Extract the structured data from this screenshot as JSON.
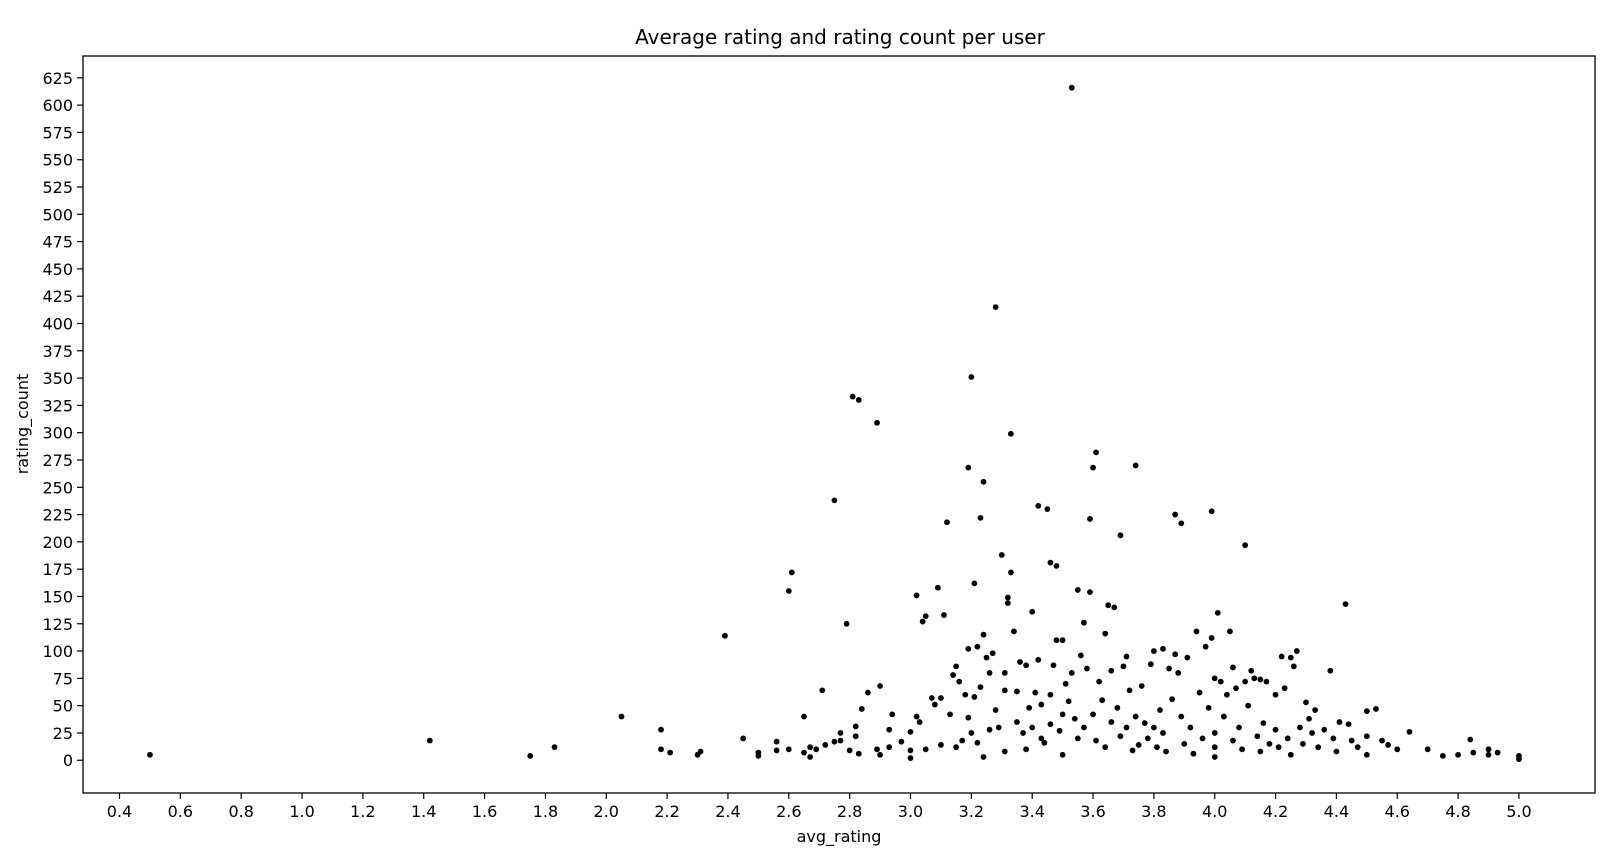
{
  "chart_data": {
    "type": "scatter",
    "title": "Average rating and rating count per user",
    "xlabel": "avg_rating",
    "ylabel": "rating_count",
    "xlim": [
      0.28,
      5.25
    ],
    "ylim": [
      -30,
      645
    ],
    "xticks": [
      "0.4",
      "0.6",
      "0.8",
      "1.0",
      "1.2",
      "1.4",
      "1.6",
      "1.8",
      "2.0",
      "2.2",
      "2.4",
      "2.6",
      "2.8",
      "3.0",
      "3.2",
      "3.4",
      "3.6",
      "3.8",
      "4.0",
      "4.2",
      "4.4",
      "4.6",
      "4.8",
      "5.0"
    ],
    "yticks": [
      "0",
      "25",
      "50",
      "75",
      "100",
      "125",
      "150",
      "175",
      "200",
      "225",
      "250",
      "275",
      "300",
      "325",
      "350",
      "375",
      "400",
      "425",
      "450",
      "475",
      "500",
      "525",
      "550",
      "575",
      "600",
      "625"
    ],
    "grid": false,
    "marker_color": "#000000",
    "points": [
      [
        0.5,
        5
      ],
      [
        1.42,
        18
      ],
      [
        1.75,
        4
      ],
      [
        1.83,
        12
      ],
      [
        2.05,
        40
      ],
      [
        2.18,
        28
      ],
      [
        2.18,
        10
      ],
      [
        2.21,
        7
      ],
      [
        2.3,
        5
      ],
      [
        2.31,
        8
      ],
      [
        2.39,
        114
      ],
      [
        2.45,
        20
      ],
      [
        2.5,
        4
      ],
      [
        2.5,
        7
      ],
      [
        2.56,
        17
      ],
      [
        2.56,
        9
      ],
      [
        2.6,
        155
      ],
      [
        2.61,
        172
      ],
      [
        2.6,
        10
      ],
      [
        2.65,
        40
      ],
      [
        2.65,
        7
      ],
      [
        2.67,
        12
      ],
      [
        2.67,
        3
      ],
      [
        2.69,
        10
      ],
      [
        2.71,
        64
      ],
      [
        2.72,
        14
      ],
      [
        2.75,
        238
      ],
      [
        2.75,
        17
      ],
      [
        2.77,
        18
      ],
      [
        2.77,
        25
      ],
      [
        2.79,
        125
      ],
      [
        2.8,
        9
      ],
      [
        2.81,
        333
      ],
      [
        2.83,
        330
      ],
      [
        2.82,
        31
      ],
      [
        2.82,
        22
      ],
      [
        2.83,
        6
      ],
      [
        2.84,
        47
      ],
      [
        2.86,
        62
      ],
      [
        2.89,
        309
      ],
      [
        2.9,
        68
      ],
      [
        2.89,
        10
      ],
      [
        2.9,
        5
      ],
      [
        2.93,
        28
      ],
      [
        2.94,
        42
      ],
      [
        2.93,
        12
      ],
      [
        2.97,
        17
      ],
      [
        3.0,
        26
      ],
      [
        3.0,
        9
      ],
      [
        3.0,
        2
      ],
      [
        3.02,
        151
      ],
      [
        3.02,
        40
      ],
      [
        3.03,
        35
      ],
      [
        3.04,
        127
      ],
      [
        3.05,
        132
      ],
      [
        3.05,
        10
      ],
      [
        3.07,
        57
      ],
      [
        3.08,
        51
      ],
      [
        3.09,
        158
      ],
      [
        3.1,
        57
      ],
      [
        3.1,
        14
      ],
      [
        3.11,
        133
      ],
      [
        3.12,
        218
      ],
      [
        3.13,
        42
      ],
      [
        3.14,
        78
      ],
      [
        3.15,
        86
      ],
      [
        3.15,
        12
      ],
      [
        3.16,
        72
      ],
      [
        3.17,
        18
      ],
      [
        3.18,
        60
      ],
      [
        3.19,
        268
      ],
      [
        3.19,
        102
      ],
      [
        3.19,
        39
      ],
      [
        3.2,
        351
      ],
      [
        3.2,
        25
      ],
      [
        3.21,
        162
      ],
      [
        3.21,
        58
      ],
      [
        3.22,
        104
      ],
      [
        3.22,
        16
      ],
      [
        3.23,
        222
      ],
      [
        3.23,
        67
      ],
      [
        3.24,
        255
      ],
      [
        3.24,
        115
      ],
      [
        3.24,
        3
      ],
      [
        3.25,
        94
      ],
      [
        3.26,
        80
      ],
      [
        3.26,
        28
      ],
      [
        3.27,
        98
      ],
      [
        3.28,
        415
      ],
      [
        3.28,
        46
      ],
      [
        3.29,
        30
      ],
      [
        3.3,
        188
      ],
      [
        3.31,
        80
      ],
      [
        3.31,
        64
      ],
      [
        3.31,
        8
      ],
      [
        3.32,
        149
      ],
      [
        3.32,
        144
      ],
      [
        3.33,
        299
      ],
      [
        3.33,
        172
      ],
      [
        3.34,
        118
      ],
      [
        3.35,
        63
      ],
      [
        3.35,
        35
      ],
      [
        3.36,
        90
      ],
      [
        3.37,
        25
      ],
      [
        3.38,
        87
      ],
      [
        3.38,
        10
      ],
      [
        3.39,
        48
      ],
      [
        3.4,
        136
      ],
      [
        3.4,
        30
      ],
      [
        3.41,
        62
      ],
      [
        3.42,
        233
      ],
      [
        3.42,
        92
      ],
      [
        3.43,
        51
      ],
      [
        3.43,
        20
      ],
      [
        3.44,
        16
      ],
      [
        3.45,
        230
      ],
      [
        3.46,
        181
      ],
      [
        3.46,
        60
      ],
      [
        3.46,
        33
      ],
      [
        3.47,
        87
      ],
      [
        3.48,
        178
      ],
      [
        3.48,
        110
      ],
      [
        3.49,
        27
      ],
      [
        3.5,
        110
      ],
      [
        3.5,
        42
      ],
      [
        3.5,
        5
      ],
      [
        3.51,
        70
      ],
      [
        3.52,
        54
      ],
      [
        3.53,
        616
      ],
      [
        3.53,
        80
      ],
      [
        3.54,
        38
      ],
      [
        3.55,
        156
      ],
      [
        3.55,
        20
      ],
      [
        3.56,
        96
      ],
      [
        3.57,
        126
      ],
      [
        3.57,
        30
      ],
      [
        3.58,
        84
      ],
      [
        3.59,
        221
      ],
      [
        3.59,
        154
      ],
      [
        3.6,
        268
      ],
      [
        3.61,
        282
      ],
      [
        3.6,
        42
      ],
      [
        3.61,
        18
      ],
      [
        3.62,
        72
      ],
      [
        3.63,
        55
      ],
      [
        3.64,
        116
      ],
      [
        3.64,
        12
      ],
      [
        3.65,
        142
      ],
      [
        3.66,
        82
      ],
      [
        3.66,
        35
      ],
      [
        3.67,
        140
      ],
      [
        3.68,
        48
      ],
      [
        3.69,
        206
      ],
      [
        3.69,
        22
      ],
      [
        3.7,
        86
      ],
      [
        3.71,
        95
      ],
      [
        3.71,
        30
      ],
      [
        3.72,
        64
      ],
      [
        3.73,
        9
      ],
      [
        3.74,
        270
      ],
      [
        3.74,
        40
      ],
      [
        3.75,
        14
      ],
      [
        3.76,
        68
      ],
      [
        3.77,
        34
      ],
      [
        3.78,
        20
      ],
      [
        3.79,
        88
      ],
      [
        3.8,
        100
      ],
      [
        3.8,
        30
      ],
      [
        3.81,
        12
      ],
      [
        3.82,
        46
      ],
      [
        3.83,
        102
      ],
      [
        3.83,
        25
      ],
      [
        3.84,
        8
      ],
      [
        3.85,
        84
      ],
      [
        3.86,
        56
      ],
      [
        3.87,
        97
      ],
      [
        3.87,
        225
      ],
      [
        3.88,
        80
      ],
      [
        3.89,
        217
      ],
      [
        3.89,
        40
      ],
      [
        3.9,
        15
      ],
      [
        3.91,
        94
      ],
      [
        3.92,
        30
      ],
      [
        3.93,
        6
      ],
      [
        3.94,
        118
      ],
      [
        3.95,
        62
      ],
      [
        3.96,
        20
      ],
      [
        3.97,
        104
      ],
      [
        3.98,
        48
      ],
      [
        3.99,
        228
      ],
      [
        3.99,
        112
      ],
      [
        4.0,
        75
      ],
      [
        4.0,
        25
      ],
      [
        4.0,
        12
      ],
      [
        4.0,
        3
      ],
      [
        4.01,
        135
      ],
      [
        4.02,
        72
      ],
      [
        4.03,
        40
      ],
      [
        4.04,
        60
      ],
      [
        4.05,
        118
      ],
      [
        4.06,
        85
      ],
      [
        4.06,
        18
      ],
      [
        4.07,
        66
      ],
      [
        4.08,
        30
      ],
      [
        4.09,
        10
      ],
      [
        4.1,
        197
      ],
      [
        4.1,
        72
      ],
      [
        4.11,
        50
      ],
      [
        4.12,
        82
      ],
      [
        4.13,
        75
      ],
      [
        4.14,
        22
      ],
      [
        4.15,
        74
      ],
      [
        4.15,
        8
      ],
      [
        4.16,
        34
      ],
      [
        4.17,
        72
      ],
      [
        4.18,
        15
      ],
      [
        4.2,
        60
      ],
      [
        4.2,
        28
      ],
      [
        4.21,
        12
      ],
      [
        4.22,
        95
      ],
      [
        4.23,
        66
      ],
      [
        4.24,
        20
      ],
      [
        4.25,
        94
      ],
      [
        4.25,
        5
      ],
      [
        4.26,
        86
      ],
      [
        4.27,
        100
      ],
      [
        4.28,
        30
      ],
      [
        4.29,
        15
      ],
      [
        4.3,
        53
      ],
      [
        4.31,
        38
      ],
      [
        4.32,
        25
      ],
      [
        4.33,
        46
      ],
      [
        4.34,
        12
      ],
      [
        4.36,
        28
      ],
      [
        4.38,
        82
      ],
      [
        4.39,
        20
      ],
      [
        4.4,
        8
      ],
      [
        4.41,
        35
      ],
      [
        4.43,
        143
      ],
      [
        4.44,
        33
      ],
      [
        4.45,
        18
      ],
      [
        4.47,
        12
      ],
      [
        4.5,
        45
      ],
      [
        4.5,
        22
      ],
      [
        4.5,
        5
      ],
      [
        4.53,
        47
      ],
      [
        4.55,
        18
      ],
      [
        4.57,
        14
      ],
      [
        4.6,
        10
      ],
      [
        4.64,
        26
      ],
      [
        4.7,
        10
      ],
      [
        4.75,
        4
      ],
      [
        4.8,
        5
      ],
      [
        4.84,
        19
      ],
      [
        4.85,
        7
      ],
      [
        4.9,
        10
      ],
      [
        4.9,
        5
      ],
      [
        4.93,
        7
      ],
      [
        5.0,
        4
      ],
      [
        5.0,
        1
      ]
    ]
  }
}
